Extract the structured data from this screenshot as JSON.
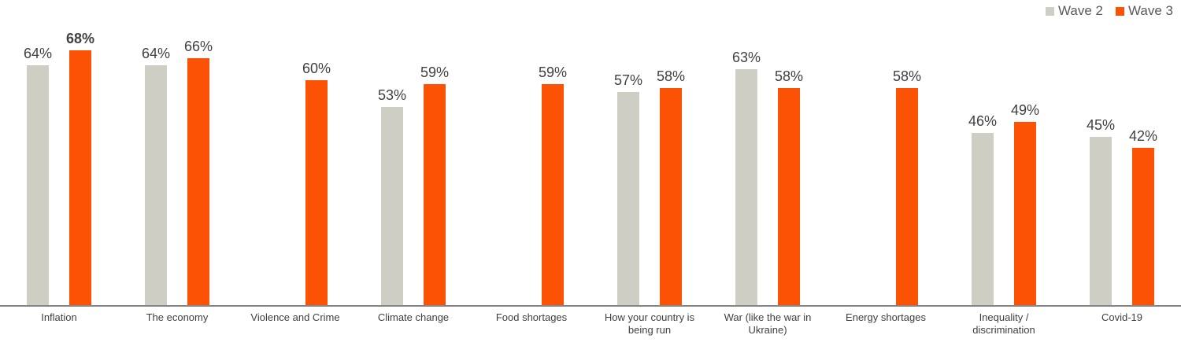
{
  "chart_data": {
    "type": "bar",
    "title": "",
    "xlabel": "",
    "ylabel": "",
    "value_suffix": "%",
    "ylim": [
      0,
      80
    ],
    "grid": false,
    "legend_position": "top-right",
    "categories": [
      "Inflation",
      "The economy",
      "Violence and Crime",
      "Climate change",
      "Food shortages",
      "How your country is being run",
      "War (like the war in Ukraine)",
      "Energy shortages",
      "Inequality / discrimination",
      "Covid-19"
    ],
    "series": [
      {
        "name": "Wave 2",
        "color": "#CFCEC4",
        "values": [
          64,
          64,
          null,
          53,
          null,
          57,
          63,
          null,
          46,
          45
        ]
      },
      {
        "name": "Wave 3",
        "color": "#FC5206",
        "values": [
          68,
          66,
          60,
          59,
          59,
          58,
          58,
          58,
          49,
          42
        ]
      }
    ],
    "bold_value_labels": [
      {
        "series_index": 1,
        "category_index": 0
      }
    ]
  },
  "colors": {
    "wave2": "#CFCEC4",
    "wave3": "#FC5206",
    "value_label_text": "#404040",
    "category_label_text": "#404040",
    "legend_text": "#595959",
    "axis_line": "#858585"
  },
  "legend": {
    "items": [
      {
        "label": "Wave 2",
        "color": "#CFCEC4"
      },
      {
        "label": "Wave 3",
        "color": "#FC5206"
      }
    ]
  }
}
